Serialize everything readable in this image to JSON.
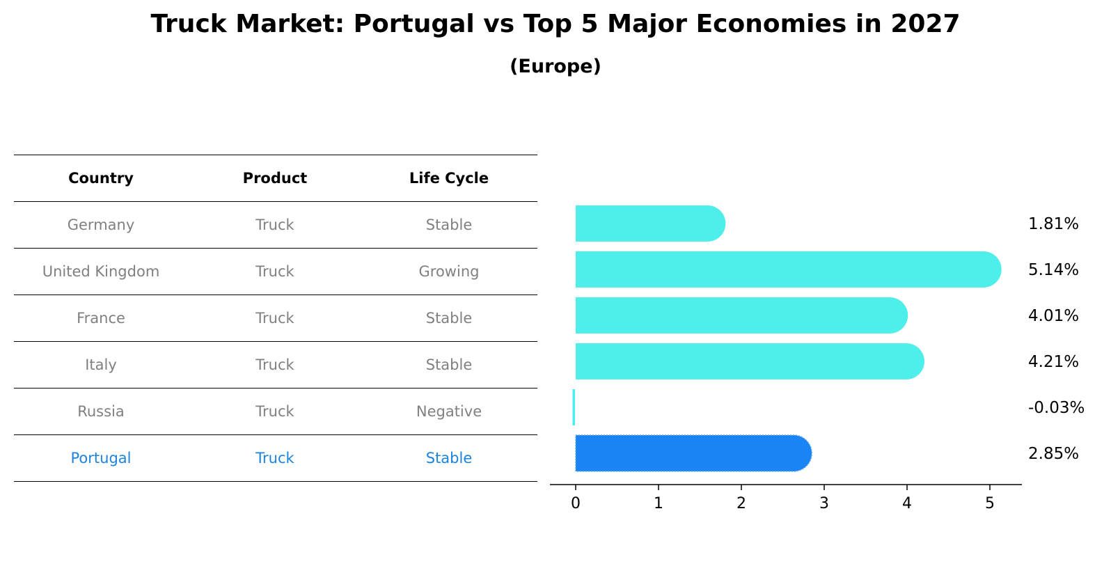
{
  "title": "Truck Market: Portugal vs Top 5 Major Economies in 2027",
  "subtitle": "(Europe)",
  "table": {
    "headers": [
      "Country",
      "Product",
      "Life Cycle"
    ],
    "rows": [
      [
        "Germany",
        "Truck",
        "Stable"
      ],
      [
        "United Kingdom",
        "Truck",
        "Growing"
      ],
      [
        "France",
        "Truck",
        "Stable"
      ],
      [
        "Italy",
        "Truck",
        "Stable"
      ],
      [
        "Russia",
        "Truck",
        "Negative"
      ],
      [
        "Portugal",
        "Truck",
        "Stable"
      ]
    ]
  },
  "chart_data": {
    "type": "bar",
    "orientation": "horizontal",
    "title": "Truck Market: Portugal vs Top 5 Major Economies in 2027",
    "subtitle": "(Europe)",
    "categories": [
      "Germany",
      "United Kingdom",
      "France",
      "Italy",
      "Russia",
      "Portugal"
    ],
    "values": [
      1.81,
      5.14,
      4.01,
      4.21,
      -0.03,
      2.85
    ],
    "labels": [
      "1.81%",
      "5.14%",
      "4.01%",
      "4.21%",
      "-0.03%",
      "2.85%"
    ],
    "highlight": "Portugal",
    "xticks": [
      0,
      1,
      2,
      3,
      4,
      5
    ],
    "xlim": [
      -0.3,
      5.4
    ],
    "colors": {
      "default": "#4eefea",
      "highlight": "#1a84f5"
    }
  }
}
